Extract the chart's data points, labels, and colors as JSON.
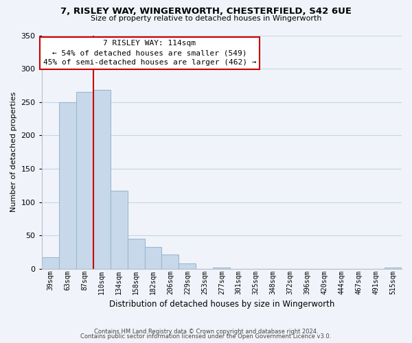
{
  "title": "7, RISLEY WAY, WINGERWORTH, CHESTERFIELD, S42 6UE",
  "subtitle": "Size of property relative to detached houses in Wingerworth",
  "xlabel": "Distribution of detached houses by size in Wingerworth",
  "ylabel": "Number of detached properties",
  "bin_labels": [
    "39sqm",
    "63sqm",
    "87sqm",
    "110sqm",
    "134sqm",
    "158sqm",
    "182sqm",
    "206sqm",
    "229sqm",
    "253sqm",
    "277sqm",
    "301sqm",
    "325sqm",
    "348sqm",
    "372sqm",
    "396sqm",
    "420sqm",
    "444sqm",
    "467sqm",
    "491sqm",
    "515sqm"
  ],
  "bar_heights": [
    18,
    250,
    265,
    268,
    117,
    45,
    33,
    22,
    8,
    0,
    2,
    0,
    0,
    0,
    0,
    0,
    0,
    0,
    0,
    0,
    2
  ],
  "bar_color": "#c8d8eb",
  "bar_edge_color": "#9ab8cc",
  "vline_color": "#cc0000",
  "annotation_title": "7 RISLEY WAY: 114sqm",
  "annotation_line1": "← 54% of detached houses are smaller (549)",
  "annotation_line2": "45% of semi-detached houses are larger (462) →",
  "annotation_box_color": "#ffffff",
  "annotation_box_edge": "#cc0000",
  "ylim": [
    0,
    350
  ],
  "yticks": [
    0,
    50,
    100,
    150,
    200,
    250,
    300,
    350
  ],
  "footer_line1": "Contains HM Land Registry data © Crown copyright and database right 2024.",
  "footer_line2": "Contains public sector information licensed under the Open Government Licence v3.0.",
  "bg_color": "#f0f4fa",
  "grid_color": "#c8d4e4"
}
